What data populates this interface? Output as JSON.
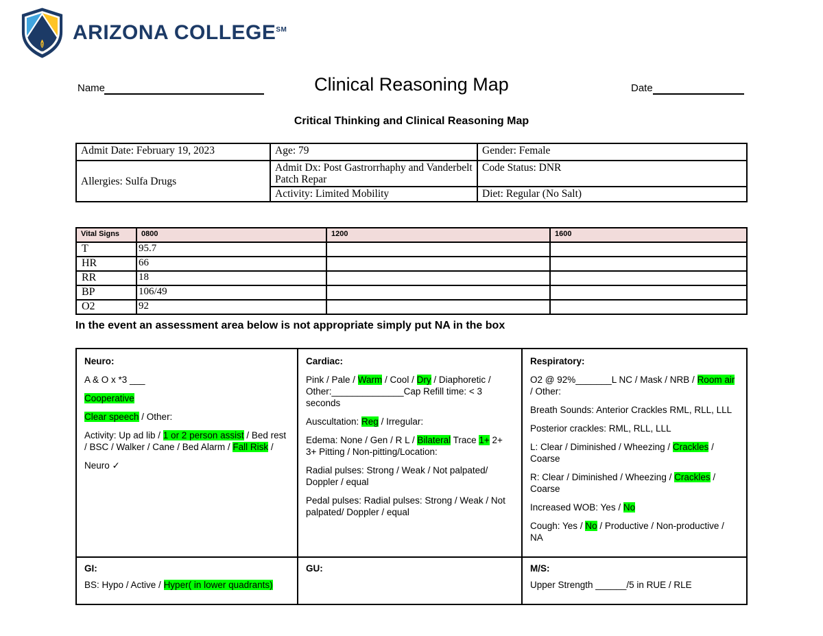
{
  "logo": {
    "text": "ARIZONA COLLEGE",
    "trademark": "SM",
    "colors": {
      "navy": "#1c3a66",
      "blue": "#41a5df",
      "gold": "#ffc425"
    }
  },
  "header": {
    "name_label": "Name",
    "title": "Clinical Reasoning Map",
    "date_label": "Date",
    "subtitle": "Critical Thinking and Clinical Reasoning Map"
  },
  "admit": {
    "admit_date": "Admit Date: February 19, 2023",
    "age": "Age: 79",
    "gender": "Gender: Female",
    "allergies": "Allergies: Sulfa Drugs",
    "admit_dx": "Admit Dx:  Post Gastrorrhaphy and Vanderbelt Patch Repar",
    "code_status": "Code Status: DNR",
    "activity": "Activity: Limited Mobility",
    "diet": "Diet: Regular (No Salt)"
  },
  "vitals": {
    "header_bg": "#f2dcdb",
    "headers": [
      "Vital Signs",
      "0800",
      "1200",
      "1600"
    ],
    "rows": [
      {
        "label": "T",
        "c0800": "95.7",
        "c1200": "",
        "c1600": ""
      },
      {
        "label": "HR",
        "c0800": "66",
        "c1200": "",
        "c1600": ""
      },
      {
        "label": "RR",
        "c0800": "18",
        "c1200": "",
        "c1600": ""
      },
      {
        "label": "BP",
        "c0800": "106/49",
        "c1200": "",
        "c1600": ""
      },
      {
        "label": "O2",
        "c0800": "92",
        "c1200": "",
        "c1600": ""
      }
    ]
  },
  "instruction": "In the event an assessment area below is not appropriate simply put NA in the box",
  "assessment": {
    "highlight_color": "#00ff00",
    "cells": [
      {
        "id": "neuro",
        "title": "Neuro:",
        "paragraphs": [
          [
            {
              "t": "A & O x *3 ___"
            }
          ],
          [
            {
              "t": "Cooperative",
              "h": true
            }
          ],
          [
            {
              "t": "Clear speech",
              "h": true
            },
            {
              "t": " / Other:"
            }
          ],
          [
            {
              "t": "Activity: Up ad lib / "
            },
            {
              "t": "1 or 2 person assist",
              "h": true
            },
            {
              "t": " / Bed rest / BSC / Walker / Cane / Bed Alarm / "
            },
            {
              "t": "Fall Risk",
              "h": true
            },
            {
              "t": " /"
            }
          ],
          [
            {
              "t": "Neuro ✓"
            }
          ]
        ]
      },
      {
        "id": "cardiac",
        "title": "Cardiac:",
        "paragraphs": [
          [
            {
              "t": "Pink / Pale / "
            },
            {
              "t": "Warm",
              "h": true
            },
            {
              "t": " / Cool / "
            },
            {
              "t": "Dry",
              "h": true
            },
            {
              "t": " / Diaphoretic / Other:______________Cap Refill time: < 3 seconds"
            }
          ],
          [
            {
              "t": "Auscultation: "
            },
            {
              "t": "Reg",
              "h": true
            },
            {
              "t": " / Irregular:"
            }
          ],
          [
            {
              "t": "Edema: None / Gen / R L / "
            },
            {
              "t": "Bilateral",
              "h": true
            },
            {
              "t": " Trace "
            },
            {
              "t": "1+",
              "h": true
            },
            {
              "t": " 2+ 3+ Pitting / Non-pitting/Location:"
            }
          ],
          [
            {
              "t": "Radial pulses: Strong / Weak / Not palpated/ Doppler / equal"
            }
          ],
          [
            {
              "t": "Pedal pulses: Radial pulses: Strong / Weak / Not palpated/ Doppler / equal"
            }
          ]
        ]
      },
      {
        "id": "respiratory",
        "title": "Respiratory:",
        "paragraphs": [
          [
            {
              "t": "O2 @ 92%_______L NC / Mask / NRB / "
            },
            {
              "t": "Room air",
              "h": true
            },
            {
              "t": " / Other:"
            }
          ],
          [
            {
              "t": "Breath Sounds: Anterior Crackles RML, RLL, LLL"
            }
          ],
          [
            {
              "t": "Posterior crackles: RML, RLL, LLL"
            }
          ],
          [
            {
              "t": "L: Clear / Diminished / Wheezing / "
            },
            {
              "t": "Crackles",
              "h": true
            },
            {
              "t": " / Coarse"
            }
          ],
          [
            {
              "t": "R: Clear / Diminished / Wheezing / "
            },
            {
              "t": "Crackles",
              "h": true
            },
            {
              "t": " / Coarse"
            }
          ],
          [
            {
              "t": "Increased WOB: Yes / "
            },
            {
              "t": "No",
              "h": true
            }
          ],
          [
            {
              "t": "Cough: Yes / "
            },
            {
              "t": "No",
              "h": true
            },
            {
              "t": " / Productive / Non-productive / NA"
            }
          ]
        ]
      },
      {
        "id": "gi",
        "title": "GI:",
        "paragraphs": [
          [
            {
              "t": "BS: Hypo / Active / "
            },
            {
              "t": "Hyper( in lower quadrants)",
              "h": true
            }
          ]
        ]
      },
      {
        "id": "gu",
        "title": "GU:",
        "paragraphs": []
      },
      {
        "id": "ms",
        "title": "M/S:",
        "paragraphs": [
          [
            {
              "t": "Upper Strength ______/5 in RUE / RLE"
            }
          ]
        ]
      }
    ]
  }
}
